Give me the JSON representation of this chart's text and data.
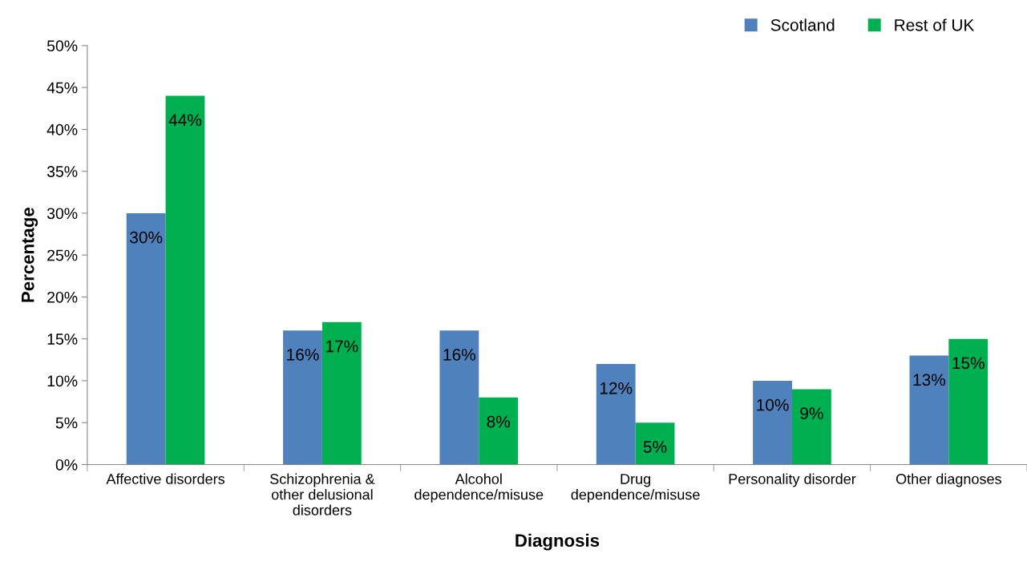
{
  "chart_data": {
    "type": "bar",
    "xlabel": "Diagnosis",
    "ylabel": "Percentage",
    "categories": [
      "Affective disorders",
      "Schizophrenia &\nother delusional\ndisorders",
      "Alcohol\ndependence/misuse",
      "Drug\ndependence/misuse",
      "Personality disorder",
      "Other diagnoses"
    ],
    "series": [
      {
        "name": "Scotland",
        "color": "#4f81bd",
        "values": [
          30,
          16,
          16,
          12,
          10,
          13
        ],
        "value_labels": [
          "30%",
          "16%",
          "16%",
          "12%",
          "10%",
          "13%"
        ]
      },
      {
        "name": "Rest of UK",
        "color": "#00b050",
        "values": [
          44,
          17,
          8,
          5,
          9,
          15
        ],
        "value_labels": [
          "44%",
          "17%",
          "8%",
          "5%",
          "9%",
          "15%"
        ]
      }
    ],
    "ylim": [
      0,
      50
    ],
    "yticks": [
      {
        "value": 0,
        "label": "0%"
      },
      {
        "value": 5,
        "label": "5%"
      },
      {
        "value": 10,
        "label": "10%"
      },
      {
        "value": 15,
        "label": "15%"
      },
      {
        "value": 20,
        "label": "20%"
      },
      {
        "value": 25,
        "label": "25%"
      },
      {
        "value": 30,
        "label": "30%"
      },
      {
        "value": 35,
        "label": "35%"
      },
      {
        "value": 40,
        "label": "40%"
      },
      {
        "value": 45,
        "label": "45%"
      },
      {
        "value": 50,
        "label": "50%"
      }
    ],
    "grid": false,
    "legend": "top right"
  }
}
